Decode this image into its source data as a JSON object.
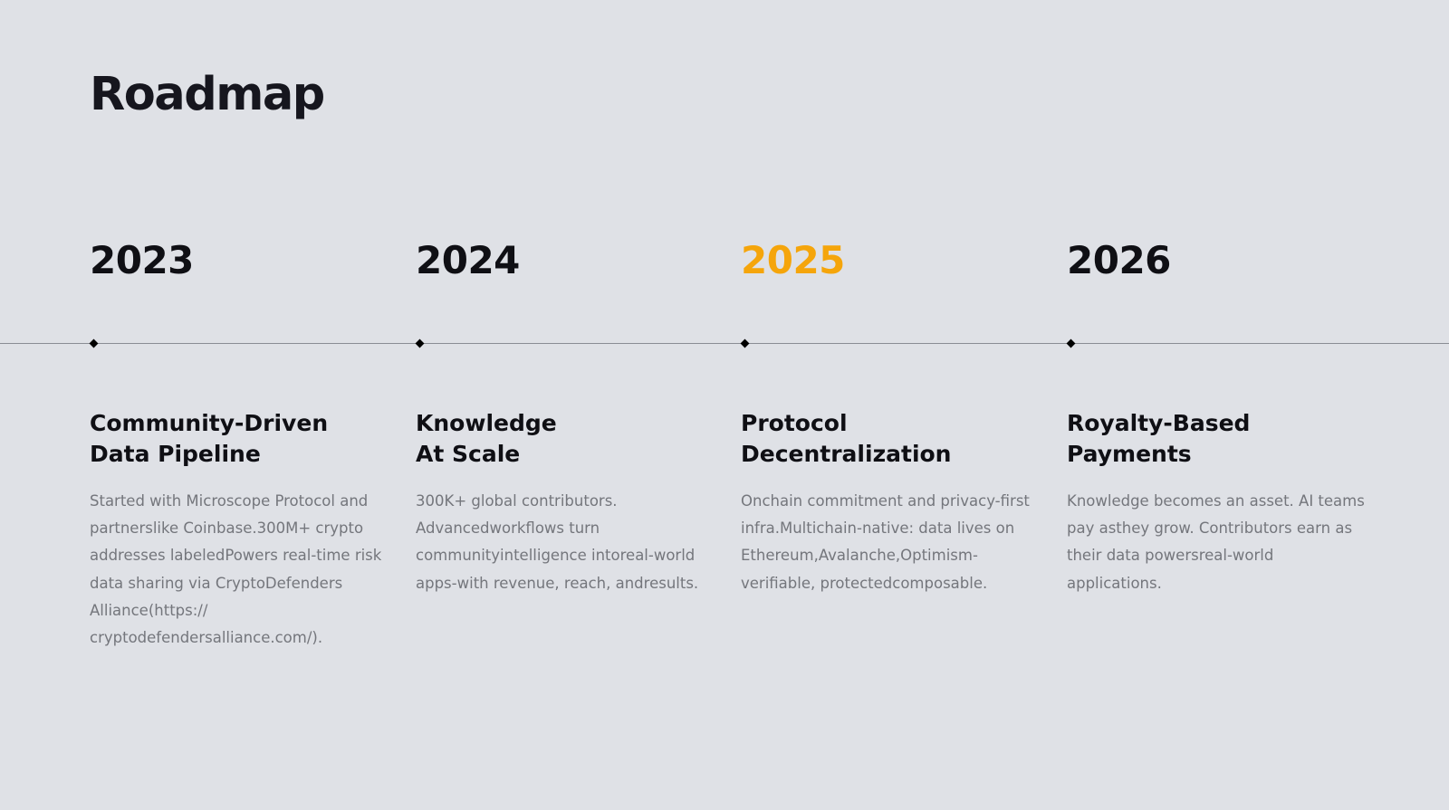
{
  "page": {
    "title": "Roadmap",
    "background": "#dfe1e6"
  },
  "colors": {
    "default_year": "#0f0f14",
    "highlight_year": "#f5a50b",
    "marker": "#000000",
    "description": "#74767c"
  },
  "milestones": [
    {
      "year": "2023",
      "highlighted": false,
      "title_line1": "Community-Driven",
      "title_line2": "Data Pipeline",
      "description": "Started with Microscope Protocol and partnerslike Coinbase.300M+ crypto addresses labeledPowers real-time risk data sharing via CryptoDefenders Alliance(https:// cryptodefendersalliance.com/)."
    },
    {
      "year": "2024",
      "highlighted": false,
      "title_line1": "Knowledge",
      "title_line2": "At Scale",
      "description": "300K+ global contributors. Advancedworkflows turn communityintelligence intoreal-world apps-with revenue, reach, andresults."
    },
    {
      "year": "2025",
      "highlighted": true,
      "title_line1": "Protocol",
      "title_line2": "Decentralization",
      "description": "Onchain commitment and privacy-first infra.Multichain-native: data lives on Ethereum,Avalanche,Optimism- verifiable, protectedcomposable."
    },
    {
      "year": "2026",
      "highlighted": false,
      "title_line1": "Royalty-Based",
      "title_line2": "Payments",
      "description": "Knowledge becomes an asset. AI teams pay asthey grow. Contributors earn as their data powersreal-world applications."
    }
  ]
}
